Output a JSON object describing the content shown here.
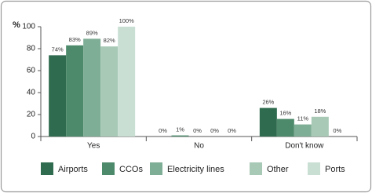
{
  "chart_data": {
    "type": "bar",
    "ylabel": "%",
    "categories": [
      "Yes",
      "No",
      "Don't know"
    ],
    "series": [
      {
        "name": "Airports",
        "color": "#2e6b4f",
        "values": [
          74,
          0,
          26
        ],
        "value_labels": [
          "74%",
          "0%",
          "26%"
        ]
      },
      {
        "name": "CCOs",
        "color": "#4d8a6b",
        "values": [
          83,
          1,
          16
        ],
        "value_labels": [
          "83%",
          "1%",
          "16%"
        ]
      },
      {
        "name": "Electricity lines",
        "color": "#7fae96",
        "values": [
          89,
          0,
          11
        ],
        "value_labels": [
          "89%",
          "0%",
          "11%"
        ]
      },
      {
        "name": "Other",
        "color": "#a7c9b6",
        "values": [
          82,
          0,
          18
        ],
        "value_labels": [
          "82%",
          "0%",
          "18%"
        ]
      },
      {
        "name": "Ports",
        "color": "#cadfd3",
        "values": [
          100,
          0,
          0
        ],
        "value_labels": [
          "100%",
          "0%",
          "0%"
        ]
      }
    ],
    "ylim": [
      0,
      100
    ],
    "yticks": [
      0,
      20,
      40,
      60,
      80,
      100
    ]
  }
}
